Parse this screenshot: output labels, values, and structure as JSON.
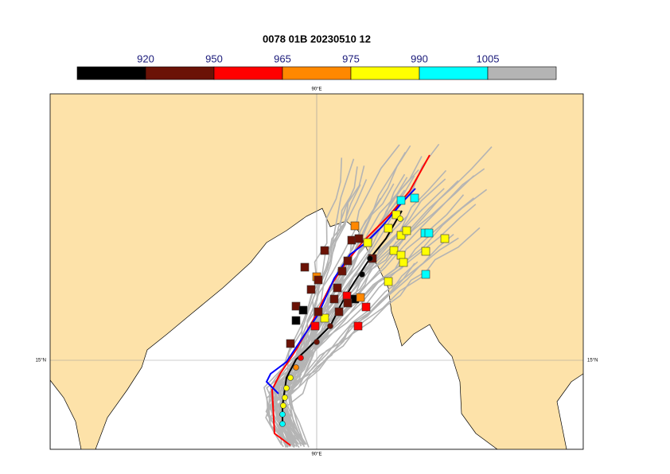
{
  "title": "0078 01B 20230510 12",
  "colorbar": {
    "colors": [
      "#000000",
      "#6b1206",
      "#ff0000",
      "#ff8800",
      "#ffff00",
      "#00ffff",
      "#b4b4b4"
    ],
    "labels": [
      "920",
      "950",
      "965",
      "975",
      "990",
      "1005"
    ]
  },
  "map": {
    "lon_labels": [
      "90°E",
      "90°E"
    ],
    "lat_labels": [
      "15°N",
      "15°N"
    ]
  }
}
